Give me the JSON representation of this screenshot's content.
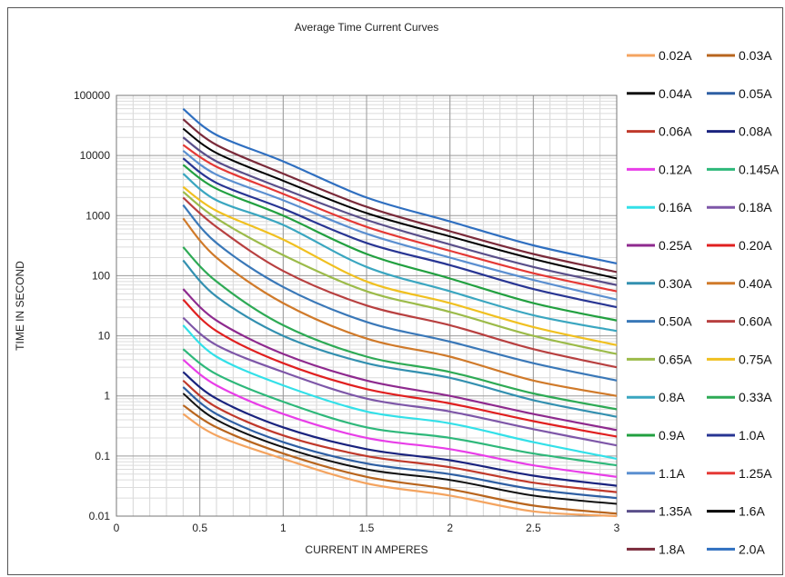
{
  "chart_data": {
    "type": "line",
    "title": "Average Time Current Curves",
    "xlabel": "CURRENT IN AMPERES",
    "ylabel": "TIME IN SECOND",
    "xlim": [
      0,
      3
    ],
    "ylim": [
      0.01,
      100000
    ],
    "y_scale": "log",
    "x_ticks": [
      "0",
      "0.5",
      "1",
      "1.5",
      "2",
      "2.5",
      "3"
    ],
    "y_ticks": [
      "0.01",
      "0.1",
      "1",
      "10",
      "100",
      "1000",
      "10000",
      "100000"
    ],
    "grid": true,
    "legend_position": "right",
    "x": [
      0.4,
      0.6,
      1.0,
      1.5,
      2.0,
      2.5,
      3.0
    ],
    "series": [
      {
        "name": "0.02A",
        "color": "#f4a460",
        "values": [
          0.5,
          0.22,
          0.09,
          0.035,
          0.022,
          0.012,
          0.01
        ]
      },
      {
        "name": "0.03A",
        "color": "#b8651e",
        "values": [
          0.7,
          0.3,
          0.11,
          0.045,
          0.028,
          0.015,
          0.011
        ]
      },
      {
        "name": "0.04A",
        "color": "#111111",
        "values": [
          1.1,
          0.4,
          0.14,
          0.06,
          0.04,
          0.022,
          0.016
        ]
      },
      {
        "name": "0.05A",
        "color": "#2e5fa3",
        "values": [
          1.4,
          0.5,
          0.17,
          0.075,
          0.05,
          0.028,
          0.02
        ]
      },
      {
        "name": "0.06A",
        "color": "#c0392b",
        "values": [
          1.8,
          0.65,
          0.22,
          0.1,
          0.065,
          0.036,
          0.025
        ]
      },
      {
        "name": "0.08A",
        "color": "#1a237e",
        "values": [
          2.5,
          0.9,
          0.3,
          0.13,
          0.085,
          0.047,
          0.032
        ]
      },
      {
        "name": "0.12A",
        "color": "#e83ee8",
        "values": [
          4,
          1.5,
          0.5,
          0.2,
          0.13,
          0.07,
          0.045
        ]
      },
      {
        "name": "0.145A",
        "color": "#2eb87a",
        "values": [
          6,
          2.3,
          0.8,
          0.3,
          0.2,
          0.11,
          0.07
        ]
      },
      {
        "name": "0.16A",
        "color": "#33e0e8",
        "values": [
          15,
          4.5,
          1.5,
          0.55,
          0.35,
          0.17,
          0.09
        ]
      },
      {
        "name": "0.18A",
        "color": "#7e57a8",
        "values": [
          20,
          7,
          2.5,
          0.9,
          0.55,
          0.28,
          0.15
        ]
      },
      {
        "name": "0.25A",
        "color": "#8e2a8e",
        "values": [
          60,
          18,
          5,
          1.8,
          1,
          0.5,
          0.27
        ]
      },
      {
        "name": "0.20A",
        "color": "#e02020",
        "values": [
          40,
          12,
          3.5,
          1.3,
          0.75,
          0.38,
          0.21
        ]
      },
      {
        "name": "0.30A",
        "color": "#3390b0",
        "values": [
          180,
          45,
          10,
          3.5,
          2,
          0.85,
          0.45
        ]
      },
      {
        "name": "0.40A",
        "color": "#d07a2a",
        "values": [
          900,
          200,
          35,
          9,
          4.5,
          1.8,
          1
        ]
      },
      {
        "name": "0.50A",
        "color": "#3a78b8",
        "values": [
          1500,
          350,
          65,
          17,
          8,
          3.5,
          1.8
        ]
      },
      {
        "name": "0.60A",
        "color": "#b84040",
        "values": [
          2000,
          650,
          120,
          32,
          15,
          6,
          3
        ]
      },
      {
        "name": "0.65A",
        "color": "#9cbb4a",
        "values": [
          2500,
          900,
          220,
          55,
          25,
          10,
          5
        ]
      },
      {
        "name": "0.75A",
        "color": "#f0c020",
        "values": [
          3000,
          1200,
          400,
          80,
          35,
          14,
          7
        ]
      },
      {
        "name": "0.8A",
        "color": "#3aa6c0",
        "values": [
          5000,
          1800,
          700,
          140,
          55,
          22,
          12
        ]
      },
      {
        "name": "0.33A",
        "color": "#2eaa55",
        "values": [
          300,
          80,
          15,
          4.5,
          2.5,
          1.1,
          0.6
        ]
      },
      {
        "name": "0.9A",
        "color": "#22a040",
        "values": [
          7000,
          2800,
          1000,
          230,
          90,
          35,
          18
        ]
      },
      {
        "name": "1.0A",
        "color": "#283593",
        "values": [
          9000,
          3500,
          1300,
          350,
          150,
          60,
          30
        ]
      },
      {
        "name": "1.1A",
        "color": "#5b8fd0",
        "values": [
          12000,
          4800,
          1800,
          500,
          200,
          85,
          40
        ]
      },
      {
        "name": "1.25A",
        "color": "#e53935",
        "values": [
          15000,
          6500,
          2300,
          650,
          260,
          110,
          55
        ]
      },
      {
        "name": "1.35A",
        "color": "#5a4f8a",
        "values": [
          20000,
          8000,
          2800,
          850,
          330,
          140,
          70
        ]
      },
      {
        "name": "1.6A",
        "color": "#000000",
        "values": [
          28000,
          11000,
          3800,
          1100,
          450,
          190,
          90
        ]
      },
      {
        "name": "1.8A",
        "color": "#7a2a3a",
        "values": [
          40000,
          15000,
          5000,
          1400,
          550,
          230,
          115
        ]
      },
      {
        "name": "2.0A",
        "color": "#2f6fc0",
        "values": [
          60000,
          22000,
          8000,
          2000,
          800,
          320,
          160
        ]
      }
    ]
  }
}
